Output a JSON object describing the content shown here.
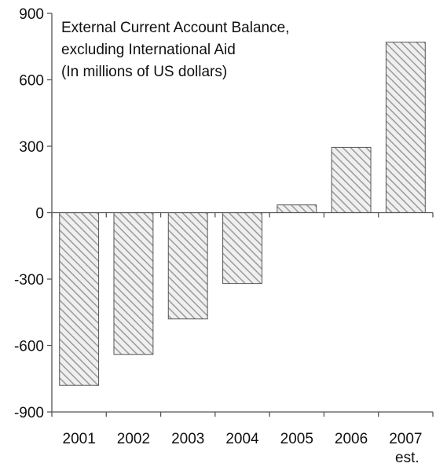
{
  "chart_data": {
    "type": "bar",
    "title_lines": [
      "External Current Account Balance,",
      "excluding International Aid",
      "(In millions of US dollars)"
    ],
    "categories": [
      "2001",
      "2002",
      "2003",
      "2004",
      "2005",
      "2006",
      "2007"
    ],
    "category_sublabels": [
      "",
      "",
      "",
      "",
      "",
      "",
      "est."
    ],
    "values": [
      -780,
      -640,
      -480,
      -320,
      35,
      295,
      770
    ],
    "ylim": [
      -900,
      900
    ],
    "yticks": [
      900,
      600,
      300,
      0,
      -300,
      -600,
      -900
    ],
    "grid": false,
    "bar_fill": "#c8c8c8",
    "bar_stroke": "#555555",
    "hatch_color": "#8c8c8c"
  }
}
